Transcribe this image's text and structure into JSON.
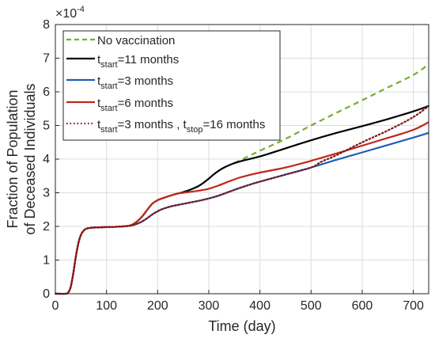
{
  "chart_data": {
    "type": "line",
    "xlabel": "Time (day)",
    "ylabel_line1": "Fraction of Population",
    "ylabel_line2": "of Deceased Individuals",
    "xlim": [
      0,
      730
    ],
    "ylim": [
      0,
      8
    ],
    "y_exponent_base": "×10",
    "y_exponent_power": "-4",
    "xticks": [
      0,
      100,
      200,
      300,
      400,
      500,
      600,
      700
    ],
    "yticks": [
      0,
      1,
      2,
      3,
      4,
      5,
      6,
      7,
      8
    ],
    "grid": true,
    "legend_position": "top-left",
    "legend": [
      {
        "main": "No vaccination",
        "sub": "",
        "rest": "",
        "sub2": "",
        "rest2": ""
      },
      {
        "main": "t",
        "sub": "start",
        "rest": "=11 months",
        "sub2": "",
        "rest2": ""
      },
      {
        "main": "t",
        "sub": "start",
        "rest": "=3 months",
        "sub2": "",
        "rest2": ""
      },
      {
        "main": "t",
        "sub": "start",
        "rest": "=6 months",
        "sub2": "",
        "rest2": ""
      },
      {
        "main": "t",
        "sub": "start",
        "rest": "=3 months , t",
        "sub2": "stop",
        "rest2": "=16 months"
      }
    ],
    "series": [
      {
        "color": "#77AC30",
        "dash": "dashed",
        "x": [
          350,
          400,
          450,
          500,
          550,
          600,
          650,
          700,
          730
        ],
        "y": [
          3.88,
          4.25,
          4.6,
          5.0,
          5.38,
          5.75,
          6.13,
          6.5,
          6.82
        ]
      },
      {
        "color": "#000000",
        "dash": "solid",
        "x": [
          0,
          20,
          25,
          30,
          35,
          40,
          45,
          50,
          55,
          60,
          70,
          80,
          100,
          120,
          140,
          150,
          160,
          170,
          180,
          190,
          200,
          210,
          220,
          230,
          240,
          250,
          260,
          270,
          280,
          290,
          300,
          310,
          320,
          330,
          340,
          350,
          370,
          400,
          450,
          500,
          550,
          600,
          650,
          700,
          730
        ],
        "y": [
          0,
          0,
          0.03,
          0.2,
          0.6,
          1.1,
          1.5,
          1.75,
          1.87,
          1.93,
          1.96,
          1.97,
          1.98,
          1.99,
          2.01,
          2.05,
          2.15,
          2.3,
          2.5,
          2.68,
          2.78,
          2.84,
          2.89,
          2.94,
          2.98,
          3.02,
          3.07,
          3.13,
          3.2,
          3.3,
          3.42,
          3.55,
          3.66,
          3.75,
          3.82,
          3.88,
          3.97,
          4.08,
          4.32,
          4.56,
          4.78,
          4.98,
          5.19,
          5.42,
          5.58
        ]
      },
      {
        "color": "#1F5FB8",
        "dash": "solid",
        "x": [
          0,
          20,
          25,
          30,
          35,
          40,
          45,
          50,
          55,
          60,
          70,
          80,
          100,
          120,
          140,
          150,
          160,
          170,
          180,
          190,
          200,
          210,
          220,
          230,
          240,
          250,
          260,
          280,
          300,
          320,
          340,
          360,
          380,
          400,
          450,
          500,
          550,
          600,
          650,
          700,
          730
        ],
        "y": [
          0,
          0,
          0.03,
          0.2,
          0.6,
          1.1,
          1.5,
          1.75,
          1.87,
          1.93,
          1.96,
          1.97,
          1.98,
          1.99,
          2.01,
          2.03,
          2.08,
          2.15,
          2.25,
          2.36,
          2.45,
          2.52,
          2.57,
          2.61,
          2.64,
          2.67,
          2.7,
          2.76,
          2.83,
          2.92,
          3.03,
          3.14,
          3.24,
          3.33,
          3.54,
          3.75,
          3.98,
          4.2,
          4.42,
          4.64,
          4.78
        ]
      },
      {
        "color": "#C0281B",
        "dash": "solid",
        "x": [
          0,
          20,
          25,
          30,
          35,
          40,
          45,
          50,
          55,
          60,
          70,
          80,
          100,
          120,
          140,
          150,
          160,
          170,
          180,
          190,
          200,
          210,
          220,
          230,
          240,
          250,
          260,
          280,
          300,
          320,
          340,
          360,
          380,
          400,
          450,
          500,
          550,
          600,
          650,
          700,
          730
        ],
        "y": [
          0,
          0,
          0.03,
          0.2,
          0.6,
          1.1,
          1.5,
          1.75,
          1.87,
          1.93,
          1.96,
          1.97,
          1.98,
          1.99,
          2.01,
          2.05,
          2.15,
          2.3,
          2.5,
          2.68,
          2.78,
          2.84,
          2.89,
          2.94,
          2.98,
          3.0,
          3.02,
          3.06,
          3.12,
          3.22,
          3.34,
          3.45,
          3.53,
          3.6,
          3.75,
          3.95,
          4.17,
          4.4,
          4.63,
          4.87,
          5.1
        ]
      },
      {
        "color": "#7B1414",
        "dash": "dotted",
        "x": [
          0,
          20,
          25,
          30,
          35,
          40,
          45,
          50,
          55,
          60,
          70,
          80,
          100,
          120,
          140,
          150,
          160,
          170,
          180,
          190,
          200,
          210,
          220,
          230,
          240,
          250,
          260,
          280,
          300,
          320,
          340,
          360,
          380,
          400,
          450,
          500,
          520,
          550,
          600,
          650,
          700,
          730
        ],
        "y": [
          0,
          0,
          0.03,
          0.2,
          0.6,
          1.1,
          1.5,
          1.75,
          1.87,
          1.93,
          1.96,
          1.97,
          1.98,
          1.99,
          2.01,
          2.03,
          2.08,
          2.15,
          2.25,
          2.36,
          2.45,
          2.52,
          2.57,
          2.61,
          2.64,
          2.67,
          2.7,
          2.76,
          2.83,
          2.92,
          3.03,
          3.14,
          3.24,
          3.33,
          3.54,
          3.75,
          3.92,
          4.12,
          4.5,
          4.85,
          5.25,
          5.58
        ]
      }
    ]
  }
}
